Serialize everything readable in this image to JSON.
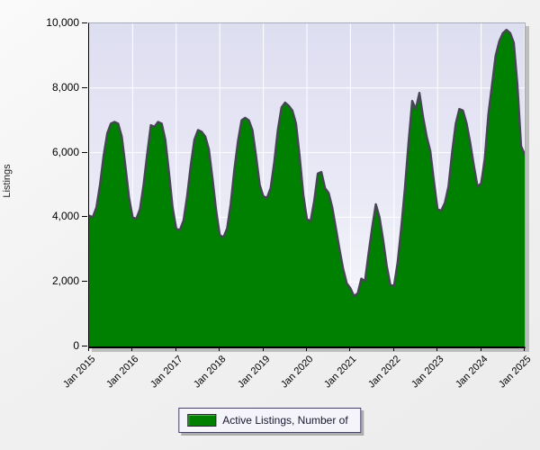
{
  "chart_data": {
    "type": "area",
    "title": "",
    "xlabel": "",
    "ylabel": "Listings",
    "series_name": "Active Listings, Number of",
    "x_start": "2015-01",
    "x_step": "1 month",
    "x_tick_labels": [
      "Jan 2015",
      "Jan 2016",
      "Jan 2017",
      "Jan 2018",
      "Jan 2019",
      "Jan 2020",
      "Jan 2021",
      "Jan 2022",
      "Jan 2023",
      "Jan 2024",
      "Jan 2025"
    ],
    "y_ticks": [
      {
        "value": 0,
        "label": "0"
      },
      {
        "value": 2000,
        "label": "2,000"
      },
      {
        "value": 4000,
        "label": "4,000"
      },
      {
        "value": 6000,
        "label": "6,000"
      },
      {
        "value": 8000,
        "label": "8,000"
      },
      {
        "value": 10000,
        "label": "10,000"
      }
    ],
    "ylim": [
      0,
      10000
    ],
    "grid": true,
    "legend_position": "bottom",
    "fill_color": "#008000",
    "line_color": "#454554",
    "grid_color": "#ffffff",
    "plot_bg_top": "#dedef1",
    "plot_bg_bottom": "#fbfbfe",
    "values": [
      4050,
      4000,
      4300,
      5000,
      5900,
      6600,
      6900,
      6950,
      6900,
      6500,
      5600,
      4600,
      4000,
      3950,
      4250,
      5000,
      5950,
      6850,
      6800,
      6950,
      6900,
      6400,
      5400,
      4300,
      3650,
      3600,
      3900,
      4650,
      5600,
      6400,
      6700,
      6650,
      6500,
      6100,
      5200,
      4200,
      3450,
      3380,
      3650,
      4400,
      5450,
      6350,
      7000,
      7080,
      7000,
      6700,
      5900,
      5000,
      4650,
      4600,
      4900,
      5700,
      6700,
      7400,
      7550,
      7450,
      7300,
      6900,
      5900,
      4700,
      3950,
      3870,
      4500,
      5350,
      5400,
      4900,
      4750,
      4300,
      3650,
      3000,
      2400,
      1950,
      1800,
      1560,
      1650,
      2100,
      2020,
      2900,
      3700,
      4400,
      4000,
      3300,
      2500,
      1900,
      1880,
      2600,
      3700,
      4900,
      6300,
      7600,
      7350,
      7850,
      7100,
      6500,
      6050,
      5100,
      4250,
      4200,
      4450,
      4950,
      6000,
      6900,
      7350,
      7300,
      6900,
      6300,
      5600,
      4950,
      5050,
      5800,
      7200,
      8100,
      9000,
      9450,
      9700,
      9800,
      9700,
      9400,
      8100,
      6200,
      5950
    ]
  }
}
